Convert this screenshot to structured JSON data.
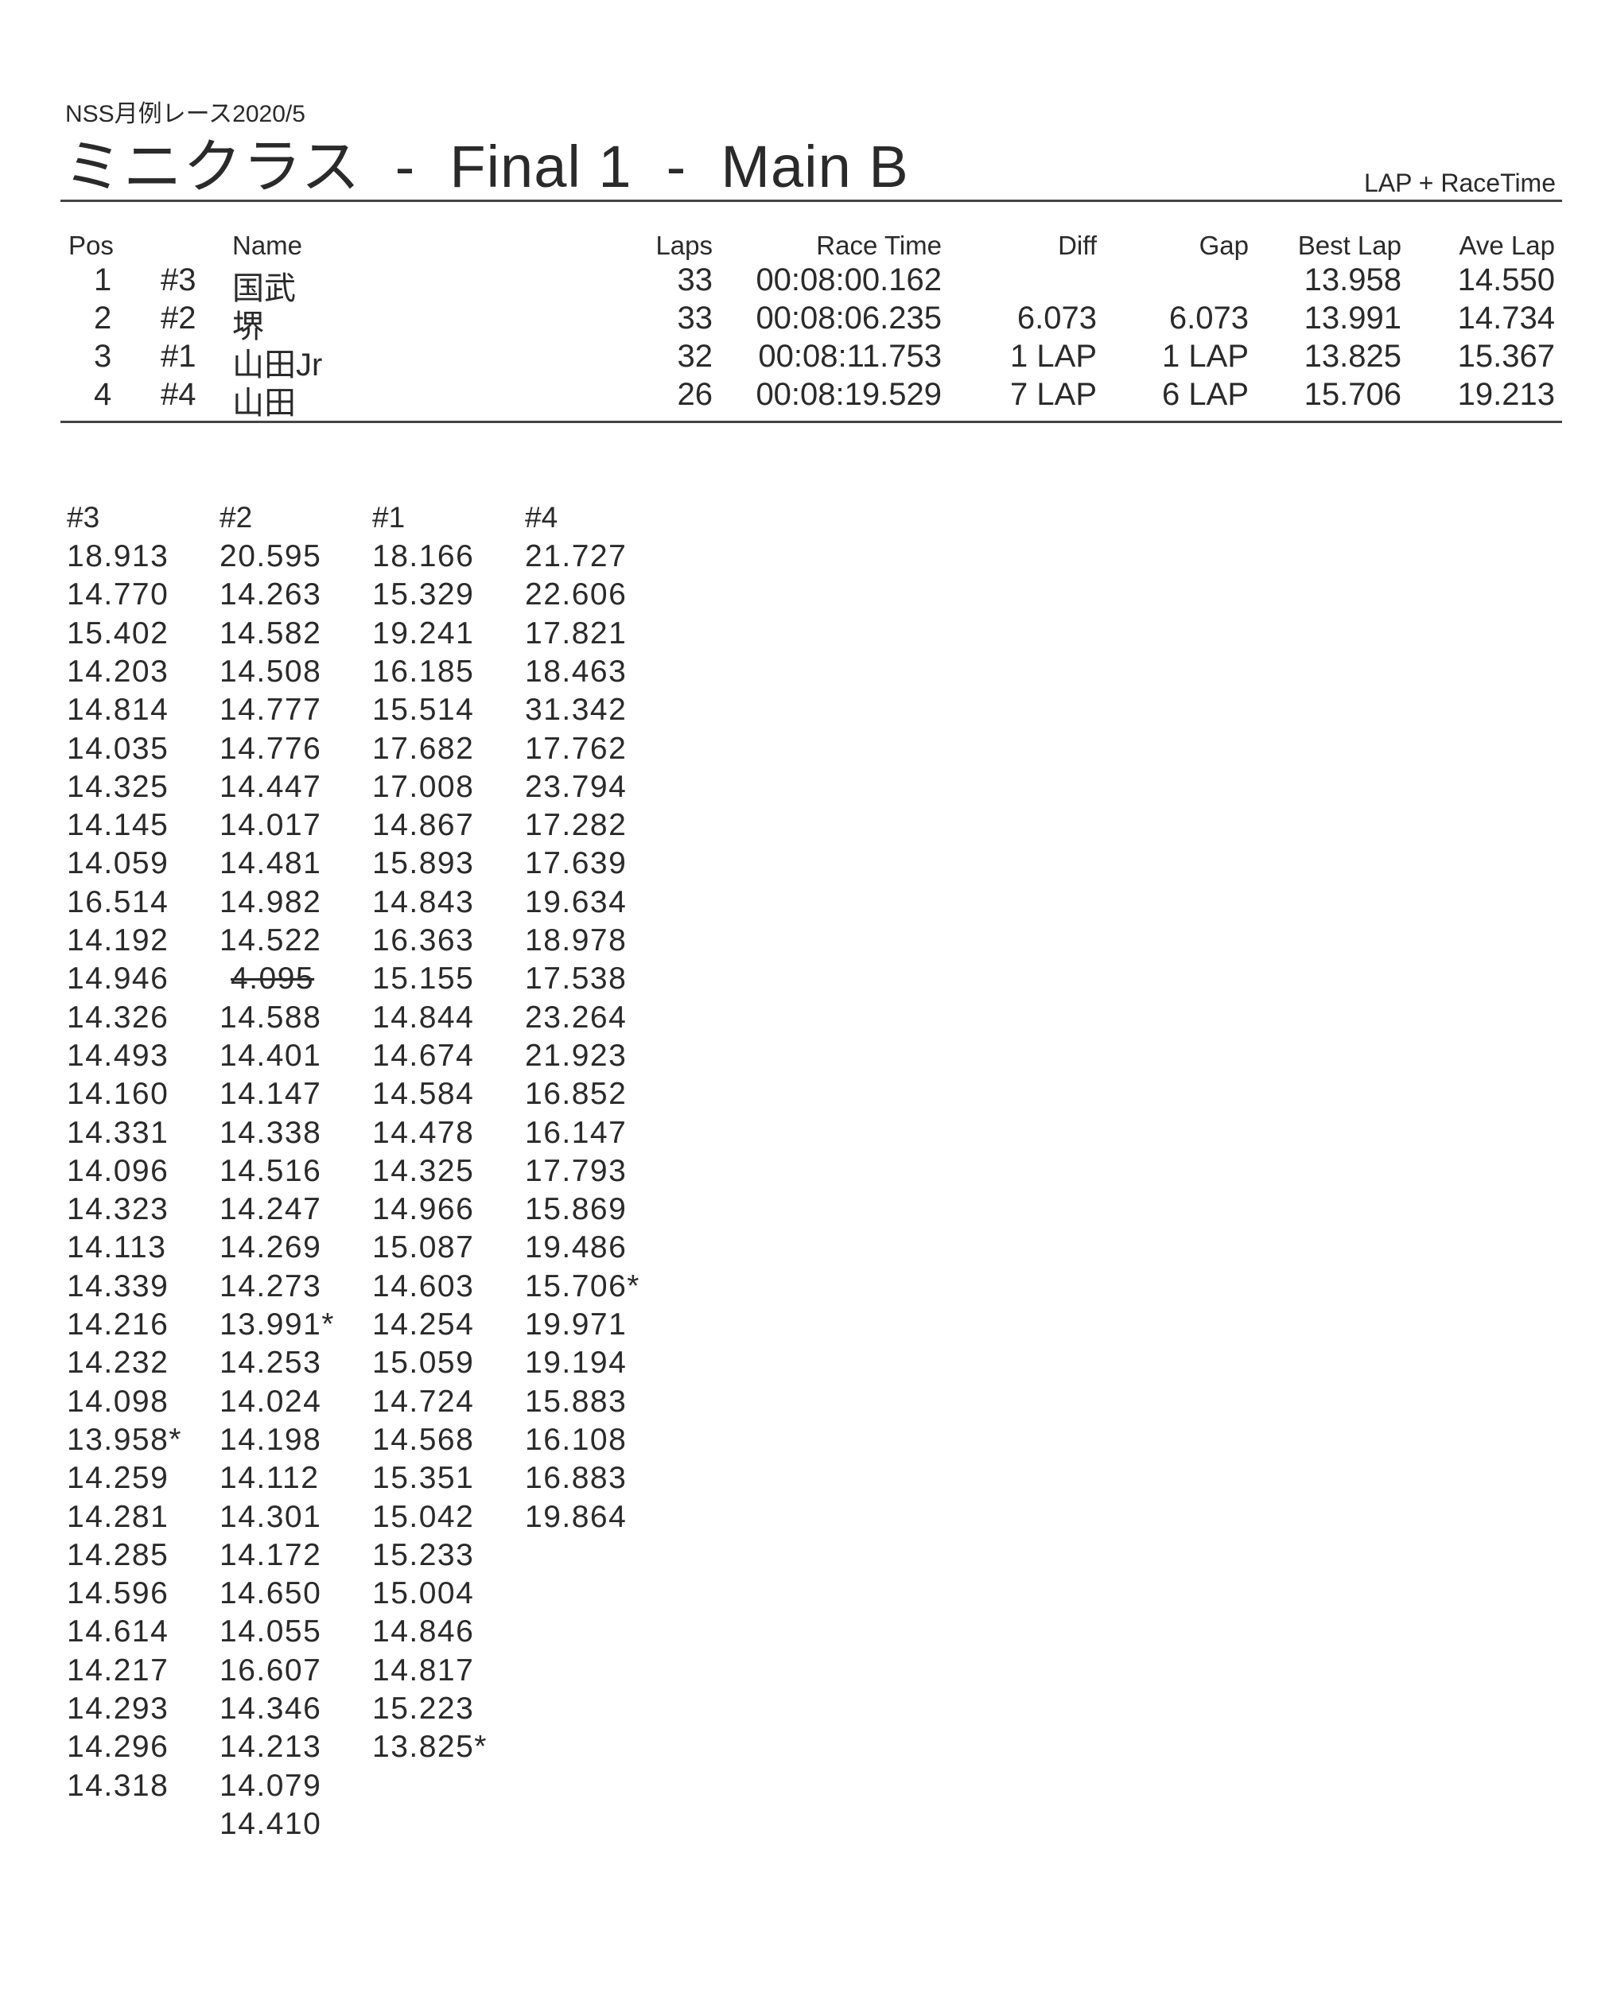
{
  "header": {
    "subtitle": "NSS月例レース2020/5",
    "title": "ミニクラス  -  Final 1  -  Main B",
    "mode": "LAP + RaceTime"
  },
  "results": {
    "columns": [
      "Pos",
      "Name",
      "Laps",
      "Race Time",
      "Diff",
      "Gap",
      "Best Lap",
      "Ave Lap"
    ],
    "rows": [
      {
        "pos": "1",
        "car": "#3",
        "name": "国武",
        "laps": "33",
        "race_time": "00:08:00.162",
        "diff": "",
        "gap": "",
        "best_lap": "13.958",
        "ave_lap": "14.550"
      },
      {
        "pos": "2",
        "car": "#2",
        "name": "堺",
        "laps": "33",
        "race_time": "00:08:06.235",
        "diff": "6.073",
        "gap": "6.073",
        "best_lap": "13.991",
        "ave_lap": "14.734"
      },
      {
        "pos": "3",
        "car": "#1",
        "name": "山田Jr",
        "laps": "32",
        "race_time": "00:08:11.753",
        "diff": "1 LAP",
        "gap": "1 LAP",
        "best_lap": "13.825",
        "ave_lap": "15.367"
      },
      {
        "pos": "4",
        "car": "#4",
        "name": "山田",
        "laps": "26",
        "race_time": "00:08:19.529",
        "diff": "7 LAP",
        "gap": "6 LAP",
        "best_lap": "15.706",
        "ave_lap": "19.213"
      }
    ]
  },
  "lap_times": [
    {
      "car": "#3",
      "laps": [
        "18.913",
        "14.770",
        "15.402",
        "14.203",
        "14.814",
        "14.035",
        "14.325",
        "14.145",
        "14.059",
        "16.514",
        "14.192",
        "14.946",
        "14.326",
        "14.493",
        "14.160",
        "14.331",
        "14.096",
        "14.323",
        "14.113",
        "14.339",
        "14.216",
        "14.232",
        "14.098",
        "13.958*",
        "14.259",
        "14.281",
        "14.285",
        "14.596",
        "14.614",
        "14.217",
        "14.293",
        "14.296",
        "14.318"
      ]
    },
    {
      "car": "#2",
      "laps": [
        "20.595",
        "14.263",
        "14.582",
        "14.508",
        "14.777",
        "14.776",
        "14.447",
        "14.017",
        "14.481",
        "14.982",
        "14.522",
        "4.095",
        "14.588",
        "14.401",
        "14.147",
        "14.338",
        "14.516",
        "14.247",
        "14.269",
        "14.273",
        "13.991*",
        "14.253",
        "14.024",
        "14.198",
        "14.112",
        "14.301",
        "14.172",
        "14.650",
        "14.055",
        "16.607",
        "14.346",
        "14.213",
        "14.079",
        "14.410"
      ],
      "struck_out": [
        "4.095"
      ]
    },
    {
      "car": "#1",
      "laps": [
        "18.166",
        "15.329",
        "19.241",
        "16.185",
        "15.514",
        "17.682",
        "17.008",
        "14.867",
        "15.893",
        "14.843",
        "16.363",
        "15.155",
        "14.844",
        "14.674",
        "14.584",
        "14.478",
        "14.325",
        "14.966",
        "15.087",
        "14.603",
        "14.254",
        "15.059",
        "14.724",
        "14.568",
        "15.351",
        "15.042",
        "15.233",
        "15.004",
        "14.846",
        "14.817",
        "15.223",
        "13.825*"
      ]
    },
    {
      "car": "#4",
      "laps": [
        "21.727",
        "22.606",
        "17.821",
        "18.463",
        "31.342",
        "17.762",
        "23.794",
        "17.282",
        "17.639",
        "19.634",
        "18.978",
        "17.538",
        "23.264",
        "21.923",
        "16.852",
        "16.147",
        "17.793",
        "15.869",
        "19.486",
        "15.706*",
        "19.971",
        "19.194",
        "15.883",
        "16.108",
        "16.883",
        "19.864"
      ]
    }
  ]
}
